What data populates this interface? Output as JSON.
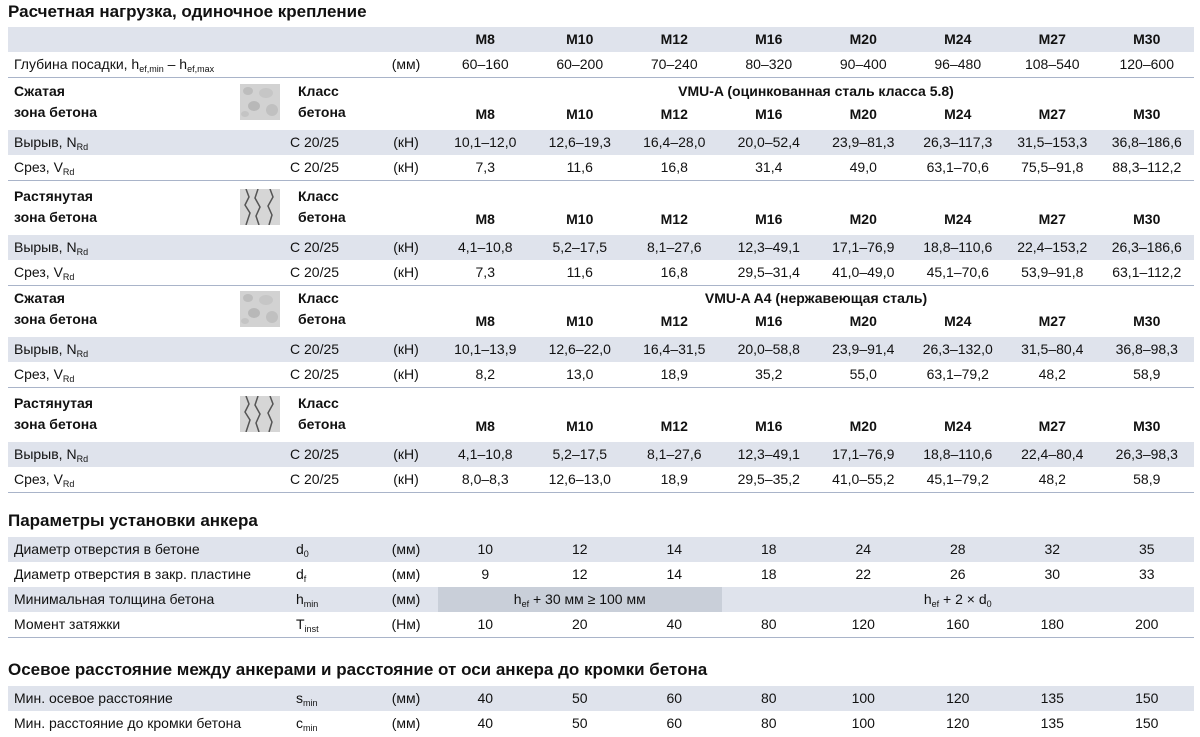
{
  "title1": "Расчетная нагрузка, одиночное крепление",
  "sizes": [
    "M8",
    "M10",
    "M12",
    "M16",
    "M20",
    "M24",
    "M27",
    "M30"
  ],
  "depth": {
    "label": "Глубина посадки, h",
    "sub1": "ef,min",
    "mid": " – h",
    "sub2": "ef,max",
    "unit": "(мм)",
    "values": [
      "60–160",
      "60–200",
      "70–240",
      "80–320",
      "90–400",
      "96–480",
      "108–540",
      "120–600"
    ]
  },
  "zones": {
    "compressed1": "Сжатая",
    "compressed2": "зона бетона",
    "tension1": "Растянутая",
    "tension2": "зона бетона",
    "class1": "Класс",
    "class2": "бетона"
  },
  "labels": {
    "pullout": "Вырыв, N",
    "shear": "Срез, V",
    "sub_rd": "Rd",
    "concrete": "C 20/25",
    "kn": "(кН)"
  },
  "steel1": "VMU-A (оцинкованная сталь класса 5.8)",
  "steel2": "VMU-A A4 (нержавеющая сталь)",
  "b1": {
    "pullout": [
      "10,1–12,0",
      "12,6–19,3",
      "16,4–28,0",
      "20,0–52,4",
      "23,9–81,3",
      "26,3–117,3",
      "31,5–153,3",
      "36,8–186,6"
    ],
    "shear": [
      "7,3",
      "11,6",
      "16,8",
      "31,4",
      "49,0",
      "63,1–70,6",
      "75,5–91,8",
      "88,3–112,2"
    ]
  },
  "b2": {
    "pullout": [
      "4,1–10,8",
      "5,2–17,5",
      "8,1–27,6",
      "12,3–49,1",
      "17,1–76,9",
      "18,8–110,6",
      "22,4–153,2",
      "26,3–186,6"
    ],
    "shear": [
      "7,3",
      "11,6",
      "16,8",
      "29,5–31,4",
      "41,0–49,0",
      "45,1–70,6",
      "53,9–91,8",
      "63,1–112,2"
    ]
  },
  "b3": {
    "pullout": [
      "10,1–13,9",
      "12,6–22,0",
      "16,4–31,5",
      "20,0–58,8",
      "23,9–91,4",
      "26,3–132,0",
      "31,5–80,4",
      "36,8–98,3"
    ],
    "shear": [
      "8,2",
      "13,0",
      "18,9",
      "35,2",
      "55,0",
      "63,1–79,2",
      "48,2",
      "58,9"
    ]
  },
  "b4": {
    "pullout": [
      "4,1–10,8",
      "5,2–17,5",
      "8,1–27,6",
      "12,3–49,1",
      "17,1–76,9",
      "18,8–110,6",
      "22,4–80,4",
      "26,3–98,3"
    ],
    "shear": [
      "8,0–8,3",
      "12,6–13,0",
      "18,9",
      "29,5–35,2",
      "41,0–55,2",
      "45,1–79,2",
      "48,2",
      "58,9"
    ]
  },
  "title2": "Параметры установки анкера",
  "install": {
    "d0": {
      "label": "Диаметр отверстия в бетоне",
      "sym": "d",
      "sub": "0",
      "unit": "(мм)",
      "values": [
        "10",
        "12",
        "14",
        "18",
        "24",
        "28",
        "32",
        "35"
      ]
    },
    "df": {
      "label": "Диаметр отверстия в закр. пластине",
      "sym": "d",
      "sub": "f",
      "unit": "(мм)",
      "values": [
        "9",
        "12",
        "14",
        "18",
        "22",
        "26",
        "30",
        "33"
      ]
    },
    "hmin": {
      "label": "Минимальная толщина бетона",
      "sym": "h",
      "sub": "min",
      "unit": "(мм)",
      "span1_a": "h",
      "span1_sub": "ef",
      "span1_b": " + 30 мм ≥ 100 мм",
      "span2_a": "h",
      "span2_sub": "ef",
      "span2_b": " + 2 × d",
      "span2_sub2": "0"
    },
    "tinst": {
      "label": "Момент затяжки",
      "sym": "T",
      "sub": "inst",
      "unit": "(Нм)",
      "values": [
        "10",
        "20",
        "40",
        "80",
        "120",
        "160",
        "180",
        "200"
      ]
    }
  },
  "title3": "Осевое расстояние между анкерами и расстояние от оси анкера до кромки бетона",
  "spacing": {
    "smin": {
      "label": "Мин. осевое расстояние",
      "sym": "s",
      "sub": "min",
      "unit": "(мм)",
      "values": [
        "40",
        "50",
        "60",
        "80",
        "100",
        "120",
        "135",
        "150"
      ]
    },
    "cmin": {
      "label": "Мин. расстояние до кромки бетона",
      "sym": "c",
      "sub": "min",
      "unit": "(мм)",
      "values": [
        "40",
        "50",
        "60",
        "80",
        "100",
        "120",
        "135",
        "150"
      ]
    }
  }
}
